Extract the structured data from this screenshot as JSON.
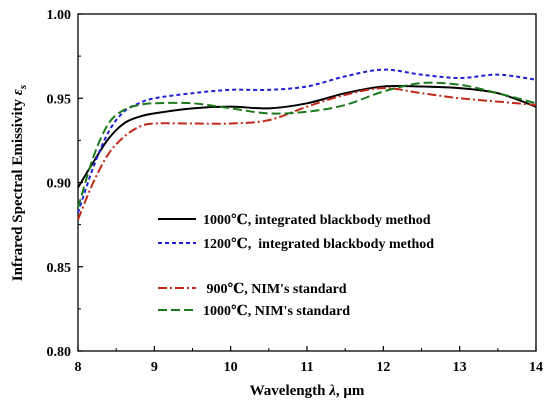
{
  "chart_data": {
    "type": "line",
    "xlabel_prefix": "Wavelength ",
    "xlabel_symbol": "λ",
    "xlabel_suffix": ", μm",
    "ylabel_prefix": "Infrared Spectral Emissivity ",
    "ylabel_symbol": "ε",
    "ylabel_subscript": "s",
    "xlim": [
      8,
      14
    ],
    "ylim": [
      0.8,
      1.0
    ],
    "xticks": [
      8,
      9,
      10,
      11,
      12,
      13,
      14
    ],
    "xtick_labels": [
      "8",
      "9",
      "10",
      "11",
      "12",
      "13",
      "14"
    ],
    "yticks": [
      0.8,
      0.85,
      0.9,
      0.95,
      1.0
    ],
    "ytick_labels": [
      "0.80",
      "0.85",
      "0.90",
      "0.95",
      "1.00"
    ],
    "grid": false,
    "legend_position": "lower-right",
    "series": [
      {
        "name": "1000℃, integrated blackbody method",
        "color": "#000000",
        "dash": "solid",
        "x": [
          8.0,
          8.2,
          8.4,
          8.6,
          8.8,
          9.0,
          9.5,
          10.0,
          10.5,
          11.0,
          11.5,
          12.0,
          12.5,
          13.0,
          13.5,
          14.0
        ],
        "y": [
          0.897,
          0.912,
          0.926,
          0.935,
          0.939,
          0.941,
          0.944,
          0.945,
          0.944,
          0.947,
          0.953,
          0.957,
          0.957,
          0.956,
          0.953,
          0.945
        ]
      },
      {
        "name": "1200℃,  integrated blackbody method",
        "color": "#1f1fd6",
        "dash": "short-dash",
        "x": [
          8.0,
          8.2,
          8.4,
          8.6,
          8.8,
          9.0,
          9.5,
          10.0,
          10.5,
          11.0,
          11.5,
          12.0,
          12.5,
          13.0,
          13.5,
          14.0
        ],
        "y": [
          0.882,
          0.909,
          0.93,
          0.942,
          0.947,
          0.95,
          0.953,
          0.955,
          0.955,
          0.957,
          0.963,
          0.967,
          0.964,
          0.962,
          0.964,
          0.961
        ]
      },
      {
        "name": " 900℃, NIM's standard",
        "color": "#c02a1b",
        "dash": "dash-dot",
        "x": [
          8.0,
          8.2,
          8.4,
          8.6,
          8.8,
          9.0,
          9.5,
          10.0,
          10.5,
          11.0,
          11.5,
          12.0,
          12.5,
          13.0,
          13.5,
          14.0
        ],
        "y": [
          0.878,
          0.9,
          0.917,
          0.927,
          0.933,
          0.935,
          0.935,
          0.935,
          0.937,
          0.945,
          0.952,
          0.956,
          0.953,
          0.95,
          0.948,
          0.946
        ]
      },
      {
        "name": "1000℃, NIM's standard",
        "color": "#1c7a1c",
        "dash": "long-dash",
        "x": [
          8.0,
          8.2,
          8.4,
          8.6,
          8.8,
          9.0,
          9.5,
          10.0,
          10.5,
          11.0,
          11.5,
          12.0,
          12.5,
          13.0,
          13.5,
          14.0
        ],
        "y": [
          0.885,
          0.915,
          0.935,
          0.943,
          0.946,
          0.947,
          0.947,
          0.944,
          0.941,
          0.942,
          0.946,
          0.954,
          0.959,
          0.958,
          0.953,
          0.947
        ]
      }
    ]
  }
}
